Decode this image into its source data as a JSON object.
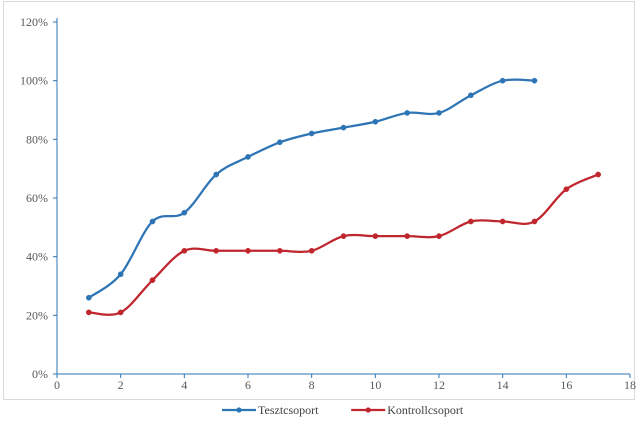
{
  "chart_data": {
    "type": "line",
    "title": "",
    "xlabel": "",
    "ylabel": "",
    "xlim": [
      0,
      18
    ],
    "ylim": [
      0,
      120
    ],
    "x_ticks": [
      0,
      2,
      4,
      6,
      8,
      10,
      12,
      14,
      16,
      18
    ],
    "y_ticks": [
      0,
      20,
      40,
      60,
      80,
      100,
      120
    ],
    "y_tick_suffix": "%",
    "grid": false,
    "smooth": true,
    "legend_position": "bottom",
    "series": [
      {
        "name": "Tesztcsoport",
        "color": "#2E75B6",
        "x": [
          1,
          2,
          3,
          4,
          5,
          6,
          7,
          8,
          9,
          10,
          11,
          12,
          13,
          14,
          15
        ],
        "values": [
          26,
          34,
          52,
          55,
          68,
          74,
          79,
          82,
          84,
          86,
          89,
          89,
          95,
          100,
          100
        ]
      },
      {
        "name": "Kontrollcsoport",
        "color": "#C0262D",
        "x": [
          1,
          2,
          3,
          4,
          5,
          6,
          7,
          8,
          9,
          10,
          11,
          12,
          13,
          14,
          15,
          16,
          17
        ],
        "values": [
          21,
          21,
          32,
          42,
          42,
          42,
          42,
          42,
          47,
          47,
          47,
          47,
          52,
          52,
          52,
          63,
          68
        ]
      }
    ]
  }
}
